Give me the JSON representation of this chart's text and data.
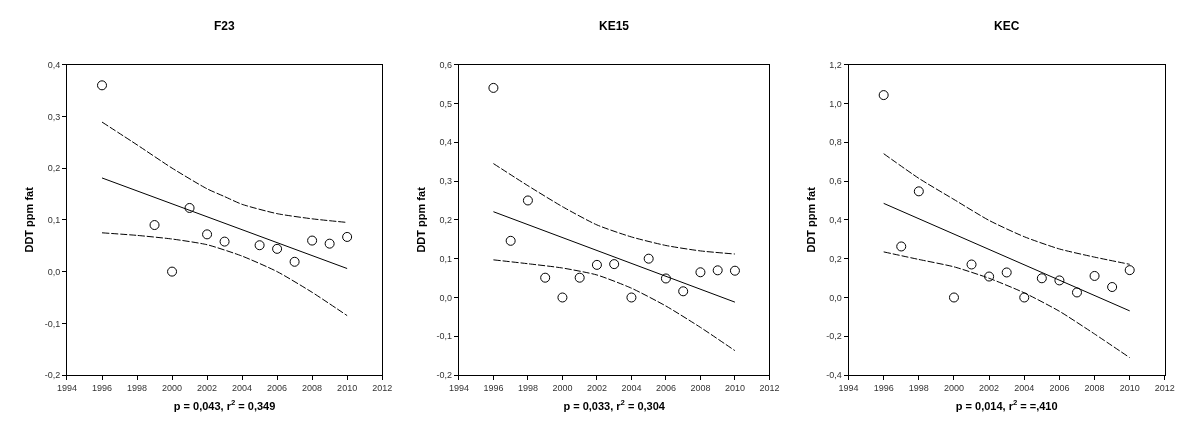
{
  "chart_data": [
    {
      "type": "scatter",
      "title": "F23",
      "xlabel": "p = 0,043, r$^{2}$ = 0,349",
      "ylabel": "DDT ppm fat",
      "xlim": [
        1994,
        2012
      ],
      "xticks": [
        1994,
        1996,
        1998,
        2000,
        2002,
        2004,
        2006,
        2008,
        2010,
        2012
      ],
      "ylim": [
        -0.2,
        0.4
      ],
      "yticks": [
        {
          "value": -0.2,
          "label": "-0,2"
        },
        {
          "value": -0.1,
          "label": "-0,1"
        },
        {
          "value": 0.0,
          "label": "0,0"
        },
        {
          "value": 0.1,
          "label": "0,1"
        },
        {
          "value": 0.2,
          "label": "0,2"
        },
        {
          "value": 0.3,
          "label": "0,3"
        },
        {
          "value": 0.4,
          "label": "0,4"
        }
      ],
      "series": [
        {
          "marker": "circle",
          "color": "#000000",
          "x": [
            1996,
            1999,
            2000,
            2001,
            2002,
            2003,
            2005,
            2006,
            2007,
            2008,
            2009,
            2010
          ],
          "values": [
            0.36,
            0.09,
            0.0,
            0.123,
            0.072,
            0.058,
            0.051,
            0.044,
            0.019,
            0.06,
            0.054,
            0.067
          ]
        },
        {
          "type": "line",
          "line_style": "solid",
          "color": "#000000",
          "x": [
            1996,
            2010
          ],
          "values": [
            0.181,
            0.006
          ]
        },
        {
          "type": "line",
          "line_style": "dashed",
          "color": "#000000",
          "x": [
            1996,
            1998,
            2000,
            2002,
            2003,
            2004,
            2006,
            2008,
            2010
          ],
          "values": [
            0.289,
            0.245,
            0.2,
            0.16,
            0.145,
            0.13,
            0.112,
            0.102,
            0.095
          ]
        },
        {
          "type": "line",
          "line_style": "dashed",
          "color": "#000000",
          "x": [
            1996,
            1998,
            2000,
            2002,
            2004,
            2006,
            2008,
            2010
          ],
          "values": [
            0.075,
            0.07,
            0.063,
            0.052,
            0.03,
            0.0,
            -0.04,
            -0.085
          ]
        }
      ]
    },
    {
      "type": "scatter",
      "title": "KE15",
      "xlabel": "p = 0,033, r$^{2}$ = 0,304",
      "ylabel": "DDT ppm fat",
      "xlim": [
        1994,
        2012
      ],
      "xticks": [
        1994,
        1996,
        1998,
        2000,
        2002,
        2004,
        2006,
        2008,
        2010,
        2012
      ],
      "ylim": [
        -0.2,
        0.6
      ],
      "yticks": [
        {
          "value": -0.2,
          "label": "-0,2"
        },
        {
          "value": -0.1,
          "label": "-0,1"
        },
        {
          "value": 0.0,
          "label": "0,0"
        },
        {
          "value": 0.1,
          "label": "0,1"
        },
        {
          "value": 0.2,
          "label": "0,2"
        },
        {
          "value": 0.3,
          "label": "0,3"
        },
        {
          "value": 0.4,
          "label": "0,4"
        },
        {
          "value": 0.5,
          "label": "0,5"
        },
        {
          "value": 0.6,
          "label": "0,6"
        }
      ],
      "series": [
        {
          "marker": "circle",
          "color": "#000000",
          "x": [
            1996,
            1997,
            1998,
            1999,
            2000,
            2001,
            2002,
            2003,
            2004,
            2005,
            2006,
            2007,
            2008,
            2009,
            2010
          ],
          "values": [
            0.54,
            0.146,
            0.25,
            0.051,
            0.0,
            0.051,
            0.084,
            0.086,
            0.0,
            0.1,
            0.049,
            0.016,
            0.065,
            0.07,
            0.069
          ]
        },
        {
          "type": "line",
          "line_style": "solid",
          "color": "#000000",
          "x": [
            1996,
            2010
          ],
          "values": [
            0.221,
            -0.012
          ]
        },
        {
          "type": "line",
          "line_style": "dashed",
          "color": "#000000",
          "x": [
            1996,
            1998,
            2000,
            2002,
            2004,
            2006,
            2008,
            2010
          ],
          "values": [
            0.345,
            0.288,
            0.234,
            0.187,
            0.156,
            0.134,
            0.12,
            0.112
          ]
        },
        {
          "type": "line",
          "line_style": "dashed",
          "color": "#000000",
          "x": [
            1996,
            1998,
            2000,
            2002,
            2004,
            2006,
            2008,
            2010
          ],
          "values": [
            0.097,
            0.087,
            0.076,
            0.058,
            0.024,
            -0.022,
            -0.077,
            -0.137
          ]
        }
      ]
    },
    {
      "type": "scatter",
      "title": "KEC",
      "xlabel": "p = 0,014, r$^{2}$ = =,410",
      "ylabel": "DDT ppm fat",
      "xlim": [
        1994,
        2012
      ],
      "xticks": [
        1994,
        1996,
        1998,
        2000,
        2002,
        2004,
        2006,
        2008,
        2010,
        2012
      ],
      "ylim": [
        -0.4,
        1.2
      ],
      "yticks": [
        {
          "value": -0.4,
          "label": "-0,4"
        },
        {
          "value": -0.2,
          "label": "-0,2"
        },
        {
          "value": 0.0,
          "label": "0,0"
        },
        {
          "value": 0.2,
          "label": "0,2"
        },
        {
          "value": 0.4,
          "label": "0,4"
        },
        {
          "value": 0.6,
          "label": "0,6"
        },
        {
          "value": 0.8,
          "label": "0,8"
        },
        {
          "value": 1.0,
          "label": "1,0"
        },
        {
          "value": 1.2,
          "label": "1,2"
        }
      ],
      "series": [
        {
          "marker": "circle",
          "color": "#000000",
          "x": [
            1996,
            1997,
            1998,
            2000,
            2001,
            2002,
            2003,
            2004,
            2005,
            2006,
            2007,
            2008,
            2009,
            2010
          ],
          "values": [
            1.043,
            0.263,
            0.547,
            0.0,
            0.17,
            0.108,
            0.129,
            0.0,
            0.099,
            0.088,
            0.026,
            0.111,
            0.054,
            0.141
          ]
        },
        {
          "type": "line",
          "line_style": "solid",
          "color": "#000000",
          "x": [
            1996,
            2010
          ],
          "values": [
            0.485,
            -0.069
          ]
        },
        {
          "type": "line",
          "line_style": "dashed",
          "color": "#000000",
          "x": [
            1996,
            1998,
            2000,
            2002,
            2004,
            2006,
            2008,
            2010
          ],
          "values": [
            0.741,
            0.614,
            0.505,
            0.397,
            0.313,
            0.25,
            0.208,
            0.171
          ]
        },
        {
          "type": "line",
          "line_style": "dashed",
          "color": "#000000",
          "x": [
            1996,
            1998,
            2000,
            2002,
            2004,
            2006,
            2008,
            2010
          ],
          "values": [
            0.235,
            0.196,
            0.158,
            0.099,
            0.024,
            -0.071,
            -0.188,
            -0.31
          ]
        }
      ]
    }
  ]
}
